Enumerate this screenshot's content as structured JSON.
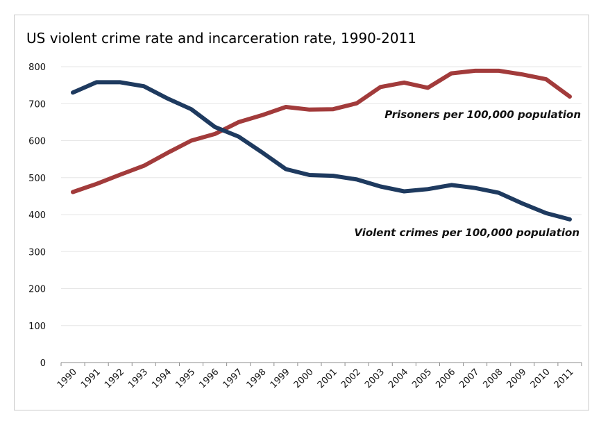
{
  "chart_data": {
    "type": "line",
    "title": "US violent crime rate and incarceration rate, 1990-2011",
    "xlabel": "",
    "ylabel": "",
    "ylim": [
      0,
      800
    ],
    "yticks": [
      0,
      100,
      200,
      300,
      400,
      500,
      600,
      700,
      800
    ],
    "grid": true,
    "legend": "none",
    "x": [
      "1990",
      "1991",
      "1992",
      "1993",
      "1994",
      "1995",
      "1996",
      "1997",
      "1998",
      "1999",
      "2000",
      "2001",
      "2002",
      "2003",
      "2004",
      "2005",
      "2006",
      "2007",
      "2008",
      "2009",
      "2010",
      "2011"
    ],
    "series": [
      {
        "name": "Prisoners per 100,000 population",
        "color": "#a23b3b",
        "values": [
          461,
          483,
          508,
          532,
          567,
          600,
          618,
          650,
          669,
          691,
          684,
          685,
          701,
          745,
          757,
          743,
          782,
          789,
          789,
          779,
          766,
          719
        ]
      },
      {
        "name": "Violent crimes per 100,000 population",
        "color": "#1e3a5f",
        "values": [
          730,
          758,
          758,
          747,
          714,
          685,
          637,
          611,
          568,
          523,
          507,
          505,
          495,
          476,
          463,
          469,
          480,
          472,
          459,
          430,
          404,
          387
        ]
      }
    ]
  }
}
